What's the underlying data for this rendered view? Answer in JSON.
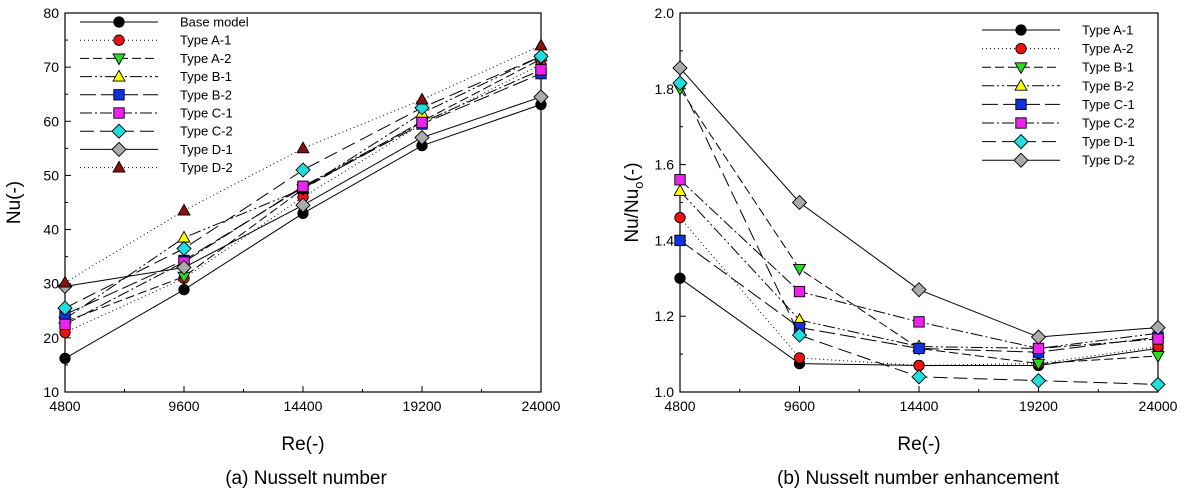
{
  "chart_data": [
    {
      "type": "line",
      "caption": "(a) Nusselt number",
      "xlabel": "Re(-)",
      "ylabel": "Nu(-)",
      "x": [
        4800,
        9600,
        14400,
        19200,
        24000
      ],
      "x_tick_labels": [
        "4800",
        "9600",
        "14400",
        "19200",
        "24000"
      ],
      "xlim": [
        4800,
        24000
      ],
      "ylim": [
        10,
        80
      ],
      "y_ticks": [
        10,
        20,
        30,
        40,
        50,
        60,
        70,
        80
      ],
      "grid": false,
      "legend_position": "top-left",
      "series": [
        {
          "name": "Base model",
          "marker": "circle",
          "color": "#000000",
          "dash": "",
          "values": [
            16.2,
            28.9,
            43.0,
            55.5,
            63.1
          ]
        },
        {
          "name": "Type A-1",
          "marker": "circle",
          "color": "#ee1111",
          "dash": "1 3",
          "values": [
            21.0,
            31.0,
            46.0,
            59.5,
            70.5
          ]
        },
        {
          "name": "Type A-2",
          "marker": "triangle-down",
          "color": "#22dd22",
          "dash": "9 4",
          "values": [
            23.0,
            31.3,
            47.5,
            60.0,
            71.5
          ]
        },
        {
          "name": "Type B-1",
          "marker": "triangle-up",
          "color": "#ffff00",
          "dash": "12 3 2 3 2 3",
          "values": [
            23.5,
            38.5,
            47.5,
            61.5,
            72.0
          ]
        },
        {
          "name": "Type B-2",
          "marker": "square",
          "color": "#1133dd",
          "dash": "16 5",
          "values": [
            24.3,
            34.3,
            47.8,
            59.5,
            68.8
          ]
        },
        {
          "name": "Type C-1",
          "marker": "square",
          "color": "#ee22ee",
          "dash": "12 3 2 3",
          "values": [
            22.5,
            34.0,
            48.0,
            59.8,
            69.5
          ]
        },
        {
          "name": "Type C-2",
          "marker": "diamond",
          "color": "#22dddd",
          "dash": "14 6",
          "values": [
            25.5,
            36.5,
            51.0,
            62.5,
            72.0
          ]
        },
        {
          "name": "Type D-1",
          "marker": "diamond",
          "color": "#aaaaaa",
          "dash": "",
          "values": [
            29.5,
            33.0,
            44.5,
            57.0,
            64.5
          ]
        },
        {
          "name": "Type D-2",
          "marker": "triangle-up",
          "color": "#881111",
          "dash": "1 3",
          "values": [
            30.2,
            43.5,
            55.0,
            64.0,
            74.0
          ]
        }
      ]
    },
    {
      "type": "line",
      "caption": "(b) Nusselt number enhancement",
      "xlabel": "Re(-)",
      "ylabel_main": "Nu/Nu",
      "ylabel_sub": "o",
      "ylabel_tail": "(-)",
      "x": [
        4800,
        9600,
        14400,
        19200,
        24000
      ],
      "x_tick_labels": [
        "4800",
        "9600",
        "14400",
        "19200",
        "24000"
      ],
      "xlim": [
        4800,
        24000
      ],
      "ylim": [
        1.0,
        2.0
      ],
      "y_ticks": [
        "1.0",
        "1.2",
        "1.4",
        "1.6",
        "1.8",
        "2.0"
      ],
      "grid": false,
      "legend_position": "top-right",
      "series": [
        {
          "name": "Type A-1",
          "marker": "circle",
          "color": "#000000",
          "dash": "",
          "values": [
            1.3,
            1.075,
            1.07,
            1.07,
            1.115
          ]
        },
        {
          "name": "Type A-2",
          "marker": "circle",
          "color": "#ee1111",
          "dash": "1 3",
          "values": [
            1.46,
            1.09,
            1.07,
            1.075,
            1.12
          ]
        },
        {
          "name": "Type B-1",
          "marker": "triangle-down",
          "color": "#22dd22",
          "dash": "9 4",
          "values": [
            1.8,
            1.325,
            1.115,
            1.075,
            1.095
          ]
        },
        {
          "name": "Type B-2",
          "marker": "triangle-up",
          "color": "#ffff00",
          "dash": "12 3 2 3 2 3",
          "values": [
            1.53,
            1.19,
            1.12,
            1.115,
            1.155
          ]
        },
        {
          "name": "Type C-1",
          "marker": "square",
          "color": "#1133dd",
          "dash": "16 5",
          "values": [
            1.4,
            1.17,
            1.115,
            1.105,
            1.145
          ]
        },
        {
          "name": "Type C-2",
          "marker": "square",
          "color": "#ee22ee",
          "dash": "12 3 2 3",
          "values": [
            1.56,
            1.265,
            1.185,
            1.115,
            1.14
          ]
        },
        {
          "name": "Type D-1",
          "marker": "diamond",
          "color": "#22dddd",
          "dash": "14 6",
          "values": [
            1.815,
            1.15,
            1.04,
            1.03,
            1.02
          ]
        },
        {
          "name": "Type D-2",
          "marker": "diamond",
          "color": "#aaaaaa",
          "dash": "",
          "values": [
            1.855,
            1.5,
            1.27,
            1.145,
            1.17
          ]
        }
      ]
    }
  ]
}
